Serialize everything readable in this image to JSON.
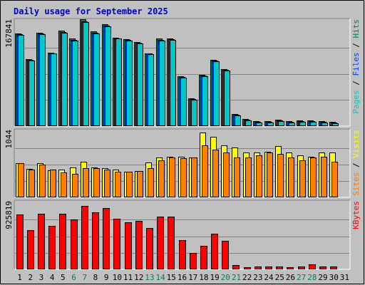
{
  "chart_data": {
    "type": "bar",
    "title": "Daily usage for September 2025",
    "categories": [
      "1",
      "2",
      "3",
      "4",
      "5",
      "6",
      "7",
      "8",
      "9",
      "10",
      "11",
      "12",
      "13",
      "14",
      "15",
      "16",
      "17",
      "18",
      "19",
      "20",
      "21",
      "22",
      "23",
      "24",
      "25",
      "26",
      "27",
      "28",
      "29",
      "30",
      "31"
    ],
    "weekend_days": [
      "6",
      "7",
      "13",
      "14",
      "20",
      "21",
      "27",
      "28"
    ],
    "colors": {
      "background": "#c0c0c0",
      "plot": "#c0c0c0",
      "hits": "#00805c",
      "files": "#0040ff",
      "pages": "#00c8c8",
      "visits": "#ffff00",
      "sites": "#ff8000",
      "kbytes": "#ff0000",
      "weekend_label": "#00805c",
      "weekday_label": "#000000"
    },
    "panels": [
      {
        "id": "hits-files-pages",
        "y_max_label": "167841",
        "y_max": 167841,
        "legend": [
          {
            "text": "Hits",
            "color": "#00805c"
          },
          {
            "text": "Files",
            "color": "#0040ff"
          },
          {
            "text": "Pages",
            "color": "#00c8c8"
          }
        ],
        "series": [
          {
            "name": "Hits",
            "color": "#00805c",
            "values": [
              149000,
              107000,
              150000,
              118000,
              153000,
              140000,
              171000,
              152000,
              163000,
              142000,
              139000,
              135000,
              117000,
              140000,
              141000,
              80000,
              44000,
              82000,
              106000,
              91000,
              19000,
              11000,
              8000,
              8000,
              10000,
              8000,
              9000,
              9000,
              8000,
              7000,
              0
            ]
          },
          {
            "name": "Files",
            "color": "#0040ff",
            "values": [
              147000,
              106000,
              148000,
              117000,
              151000,
              138000,
              168000,
              150000,
              161000,
              141000,
              138000,
              134000,
              116000,
              138000,
              139000,
              79000,
              43000,
              81000,
              105000,
              90000,
              18000,
              10000,
              7000,
              7000,
              9000,
              7000,
              8000,
              8000,
              7000,
              6000,
              0
            ]
          },
          {
            "name": "Pages",
            "color": "#00c8c8",
            "values": [
              146000,
              105000,
              147000,
              116000,
              150000,
              137000,
              167000,
              149000,
              160000,
              140000,
              137000,
              133000,
              115000,
              137000,
              138000,
              78000,
              42000,
              80000,
              104000,
              89000,
              17000,
              9000,
              6000,
              6000,
              8000,
              6000,
              7000,
              7000,
              6000,
              5000,
              0
            ]
          }
        ]
      },
      {
        "id": "visits-sites",
        "y_max_label": "1044",
        "y_max": 1044,
        "legend": [
          {
            "text": "Visits",
            "color": "#ffff00"
          },
          {
            "text": "Sites",
            "color": "#ff8000"
          }
        ],
        "series": [
          {
            "name": "Visits",
            "color": "#ffff00",
            "values": [
              550,
              450,
              540,
              430,
              440,
              480,
              570,
              480,
              460,
              440,
              410,
              420,
              560,
              630,
              650,
              650,
              640,
              1030,
              960,
              830,
              800,
              720,
              720,
              730,
              820,
              720,
              670,
              650,
              720,
              710,
              0
            ]
          },
          {
            "name": "Sites",
            "color": "#ff8000",
            "values": [
              550,
              440,
              520,
              440,
              400,
              380,
              470,
              460,
              440,
              410,
              410,
              420,
              460,
              590,
              630,
              620,
              630,
              830,
              760,
              710,
              640,
              630,
              670,
              710,
              690,
              640,
              590,
              630,
              650,
              570,
              0
            ]
          }
        ]
      },
      {
        "id": "kbytes",
        "y_max_label": "925819",
        "y_max": 925819,
        "legend": [
          {
            "text": "KBytes",
            "color": "#ff0000"
          }
        ],
        "series": [
          {
            "name": "KBytes",
            "color": "#ff0000",
            "values": [
              770000,
              550000,
              780000,
              610000,
              780000,
              700000,
              890000,
              800000,
              860000,
              710000,
              660000,
              680000,
              580000,
              740000,
              740000,
              410000,
              230000,
              330000,
              500000,
              400000,
              62000,
              27000,
              36000,
              36000,
              36000,
              30000,
              36000,
              70000,
              36000,
              36000,
              0
            ]
          }
        ]
      }
    ],
    "grid": true
  }
}
